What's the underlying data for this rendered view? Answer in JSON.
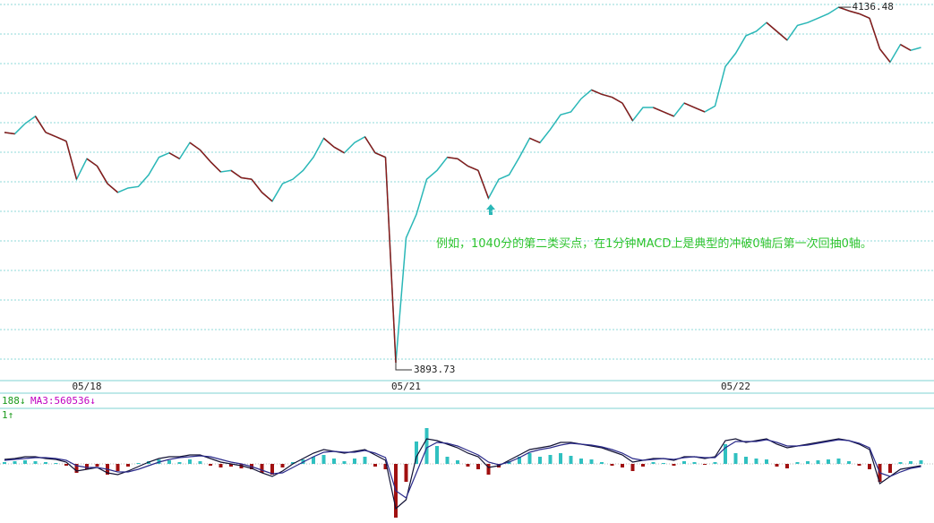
{
  "chart_data": [
    {
      "type": "line",
      "categories": [
        null,
        null,
        null,
        null,
        null,
        null,
        null,
        null,
        "05/18",
        null,
        null,
        null,
        null,
        null,
        null,
        null,
        null,
        null,
        null,
        null,
        null,
        null,
        null,
        null,
        null,
        null,
        null,
        null,
        null,
        null,
        null,
        null,
        null,
        null,
        null,
        null,
        null,
        null,
        null,
        "05/21",
        null,
        null,
        null,
        null,
        null,
        null,
        null,
        null,
        null,
        null,
        null,
        null,
        null,
        null,
        null,
        null,
        null,
        null,
        null,
        null,
        null,
        null,
        null,
        null,
        null,
        null,
        null,
        null,
        null,
        null,
        null,
        "05/22",
        null,
        null,
        null,
        null,
        null,
        null,
        null,
        null,
        null,
        null,
        null,
        null,
        null,
        null,
        null,
        null,
        null,
        null
      ],
      "series": [
        {
          "colors": {
            "up": "#2ab7b7",
            "down": "#8b1a1a"
          },
          "values": [
            4051,
            4050,
            4057,
            4062,
            4051,
            4048,
            4045,
            4019,
            4033,
            4028,
            4016,
            4010,
            4013,
            4014,
            4022,
            4034,
            4037,
            4033,
            4044,
            4039,
            4031,
            4024,
            4025,
            4020,
            4019,
            4010,
            4004,
            4016,
            4019,
            4025,
            4034,
            4047,
            4041,
            4037,
            4044,
            4048,
            4037,
            4034,
            3893.73,
            3979,
            3995,
            4019,
            4025,
            4034,
            4033,
            4028,
            4025,
            4006,
            4019,
            4022,
            4034,
            4047,
            4044,
            4053,
            4063,
            4065,
            4074,
            4080,
            4077,
            4075,
            4071,
            4059,
            4068,
            4068,
            4065,
            4062,
            4071,
            4068,
            4065,
            4069,
            4096,
            4105,
            4117,
            4120,
            4126,
            4120,
            4114,
            4124,
            4126,
            4129,
            4132,
            4136.48,
            4134,
            4132,
            4129,
            4108,
            4099,
            4111,
            4107,
            4109
          ]
        }
      ],
      "ylim": [
        3881.5,
        4141.4
      ],
      "grid": true,
      "annotation": {
        "text": "例如，1040分的第二类买点，在1分钟MACD上是典型的冲破0轴后第一次回抽0轴。",
        "color": "#2fc42f"
      }
    },
    {
      "type": "macd",
      "header": [
        {
          "text": "188↓",
          "color": "#1a9a1a"
        },
        {
          "text": "MA3:560536↓",
          "color": "#c000c0"
        },
        {
          "text": "1↑",
          "color": "#1a9a1a"
        }
      ],
      "series": [
        {
          "colors": {
            "up": "#30c0c0",
            "down": "#a01010"
          },
          "values": [
            2,
            3,
            4,
            3,
            2,
            1,
            -2,
            -10,
            -6,
            -3,
            -12,
            -8,
            -3,
            1,
            3,
            5,
            4,
            2,
            5,
            3,
            -2,
            -4,
            -3,
            -5,
            -6,
            -10,
            -12,
            -4,
            2,
            5,
            8,
            10,
            6,
            3,
            6,
            8,
            -3,
            -6,
            -60,
            -20,
            25,
            40,
            20,
            8,
            4,
            -3,
            -6,
            -12,
            -4,
            3,
            8,
            12,
            8,
            10,
            12,
            9,
            6,
            5,
            2,
            -2,
            -4,
            -8,
            -3,
            2,
            1,
            -2,
            3,
            2,
            -1,
            2,
            22,
            12,
            8,
            6,
            5,
            -3,
            -5,
            2,
            3,
            4,
            5,
            6,
            3,
            -2,
            -6,
            -20,
            -10,
            2,
            3,
            4
          ]
        },
        {
          "color": "#111133",
          "values": [
            5,
            6,
            8,
            8,
            6,
            5,
            2,
            -8,
            -6,
            -4,
            -10,
            -12,
            -8,
            -3,
            2,
            6,
            8,
            8,
            10,
            10,
            6,
            2,
            0,
            -2,
            -5,
            -10,
            -14,
            -8,
            0,
            6,
            12,
            16,
            14,
            12,
            14,
            16,
            10,
            4,
            -50,
            -40,
            8,
            28,
            26,
            22,
            18,
            12,
            8,
            -4,
            -2,
            4,
            10,
            16,
            18,
            20,
            24,
            24,
            22,
            20,
            18,
            14,
            10,
            2,
            4,
            6,
            6,
            4,
            8,
            8,
            6,
            8,
            26,
            28,
            24,
            26,
            28,
            22,
            18,
            20,
            22,
            24,
            26,
            28,
            26,
            22,
            16,
            -22,
            -14,
            -6,
            -4,
            -2
          ]
        },
        {
          "color": "#2a2a8a",
          "values": [
            4,
            5,
            6,
            7,
            7,
            6,
            4,
            -2,
            -4,
            -4,
            -6,
            -9,
            -9,
            -6,
            -2,
            2,
            5,
            7,
            8,
            9,
            8,
            5,
            2,
            0,
            -3,
            -7,
            -11,
            -10,
            -4,
            2,
            8,
            13,
            14,
            13,
            13,
            15,
            12,
            7,
            -30,
            -38,
            -10,
            18,
            24,
            23,
            20,
            15,
            10,
            2,
            -1,
            2,
            7,
            13,
            16,
            18,
            21,
            23,
            22,
            21,
            19,
            16,
            12,
            6,
            4,
            5,
            6,
            5,
            7,
            8,
            7,
            7,
            18,
            25,
            25,
            25,
            27,
            24,
            20,
            20,
            21,
            23,
            25,
            27,
            26,
            23,
            18,
            -10,
            -14,
            -9,
            -5,
            -3
          ]
        }
      ],
      "ylim": [
        -66,
        60
      ]
    }
  ]
}
